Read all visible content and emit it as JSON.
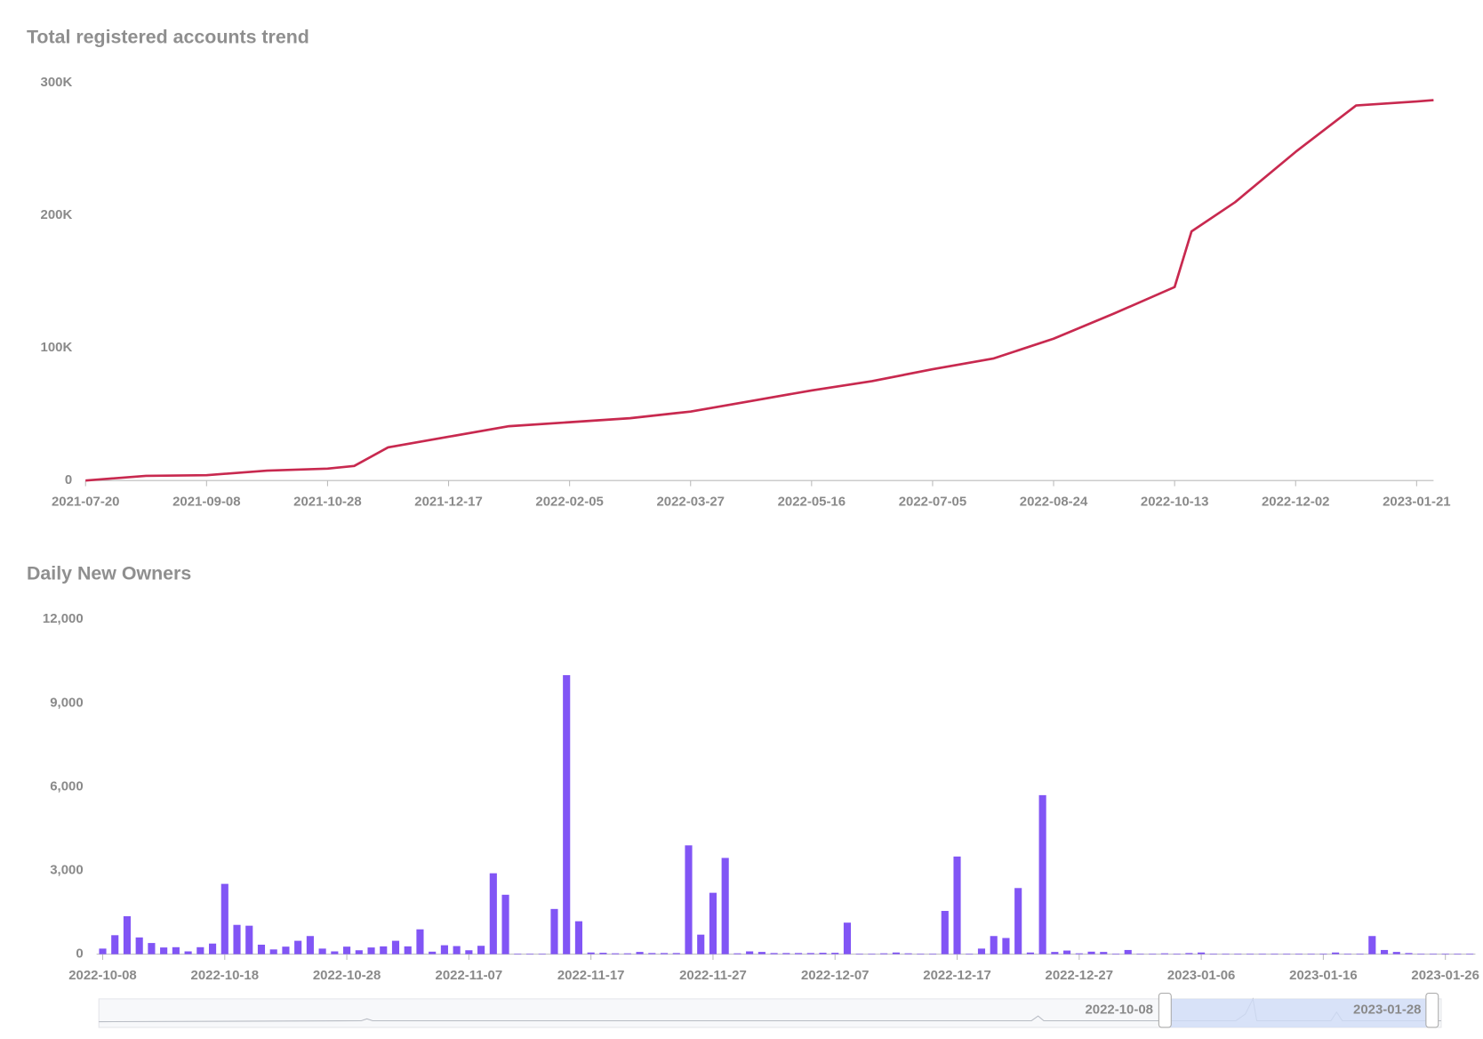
{
  "chart_data": [
    {
      "type": "line",
      "title": "Total registered accounts trend",
      "color": "#c8294f",
      "x": [
        "2021-07-20",
        "2021-08-14",
        "2021-09-08",
        "2021-10-03",
        "2021-10-28",
        "2021-11-08",
        "2021-11-22",
        "2021-12-17",
        "2022-01-11",
        "2022-02-05",
        "2022-03-02",
        "2022-03-27",
        "2022-04-21",
        "2022-05-16",
        "2022-06-10",
        "2022-07-05",
        "2022-07-30",
        "2022-08-24",
        "2022-09-18",
        "2022-10-13",
        "2022-10-20",
        "2022-11-07",
        "2022-12-02",
        "2022-12-27",
        "2023-01-21",
        "2023-01-28"
      ],
      "values": [
        0,
        3500,
        4000,
        7500,
        9000,
        11000,
        25000,
        33000,
        41000,
        44000,
        47000,
        52000,
        60000,
        68000,
        75000,
        84000,
        92000,
        107000,
        126000,
        146000,
        188000,
        210000,
        248000,
        283000,
        286000,
        287000
      ],
      "xlim": [
        "2021-07-20",
        "2023-01-28"
      ],
      "xticks": [
        "2021-07-20",
        "2021-09-08",
        "2021-10-28",
        "2021-12-17",
        "2022-02-05",
        "2022-03-27",
        "2022-05-16",
        "2022-07-05",
        "2022-08-24",
        "2022-10-13",
        "2022-12-02",
        "2023-01-21"
      ],
      "ylim": [
        0,
        300000
      ],
      "yticks": [
        0,
        {
          "value": 100000,
          "label": "100K"
        },
        {
          "value": 200000,
          "label": "200K"
        },
        {
          "value": 300000,
          "label": "300K"
        }
      ],
      "grid": false
    },
    {
      "type": "bar",
      "title": "Daily New Owners",
      "color": "#8155f5",
      "categories": [
        "2022-10-08",
        null,
        null,
        null,
        null,
        null,
        null,
        null,
        null,
        null,
        "2022-10-18",
        null,
        null,
        null,
        null,
        null,
        null,
        null,
        null,
        null,
        "2022-10-28",
        null,
        null,
        null,
        null,
        null,
        null,
        null,
        null,
        null,
        "2022-11-07",
        null,
        null,
        null,
        null,
        null,
        null,
        null,
        null,
        null,
        "2022-11-17",
        null,
        null,
        null,
        null,
        null,
        null,
        null,
        null,
        null,
        "2022-11-27",
        null,
        null,
        null,
        null,
        null,
        null,
        null,
        null,
        null,
        "2022-12-07",
        null,
        null,
        null,
        null,
        null,
        null,
        null,
        null,
        null,
        "2022-12-17",
        null,
        null,
        null,
        null,
        null,
        null,
        null,
        null,
        null,
        "2022-12-27",
        null,
        null,
        null,
        null,
        null,
        null,
        null,
        null,
        null,
        "2023-01-06",
        null,
        null,
        null,
        null,
        null,
        null,
        null,
        null,
        null,
        "2023-01-16",
        null,
        null,
        null,
        null,
        null,
        null,
        null,
        null,
        null,
        "2023-01-26",
        null,
        null
      ],
      "values": [
        200,
        680,
        1360,
        600,
        400,
        240,
        250,
        100,
        250,
        380,
        2520,
        1050,
        1020,
        340,
        170,
        270,
        480,
        650,
        200,
        100,
        270,
        140,
        240,
        280,
        480,
        280,
        890,
        90,
        320,
        290,
        140,
        300,
        2900,
        2130,
        20,
        20,
        20,
        1620,
        10000,
        1180,
        60,
        50,
        30,
        30,
        80,
        40,
        40,
        40,
        3900,
        700,
        2200,
        3450,
        30,
        100,
        80,
        40,
        40,
        40,
        40,
        50,
        50,
        1130,
        20,
        20,
        30,
        60,
        30,
        20,
        20,
        1550,
        3500,
        20,
        200,
        650,
        580,
        2370,
        60,
        5700,
        80,
        130,
        30,
        90,
        80,
        20,
        150,
        20,
        20,
        30,
        20,
        40,
        60,
        20,
        20,
        20,
        20,
        20,
        20,
        20,
        20,
        20,
        20,
        60,
        20,
        20,
        650,
        150,
        80,
        40,
        20,
        20,
        20,
        20,
        20
      ],
      "ylim": [
        0,
        12000
      ],
      "yticks": [
        0,
        {
          "value": 3000,
          "label": "3,000"
        },
        {
          "value": 6000,
          "label": "6,000"
        },
        {
          "value": 9000,
          "label": "9,000"
        },
        {
          "value": 12000,
          "label": "12,000"
        }
      ],
      "grid": false,
      "zoom": {
        "start": "2022-10-08",
        "end": "2023-01-28"
      }
    }
  ]
}
